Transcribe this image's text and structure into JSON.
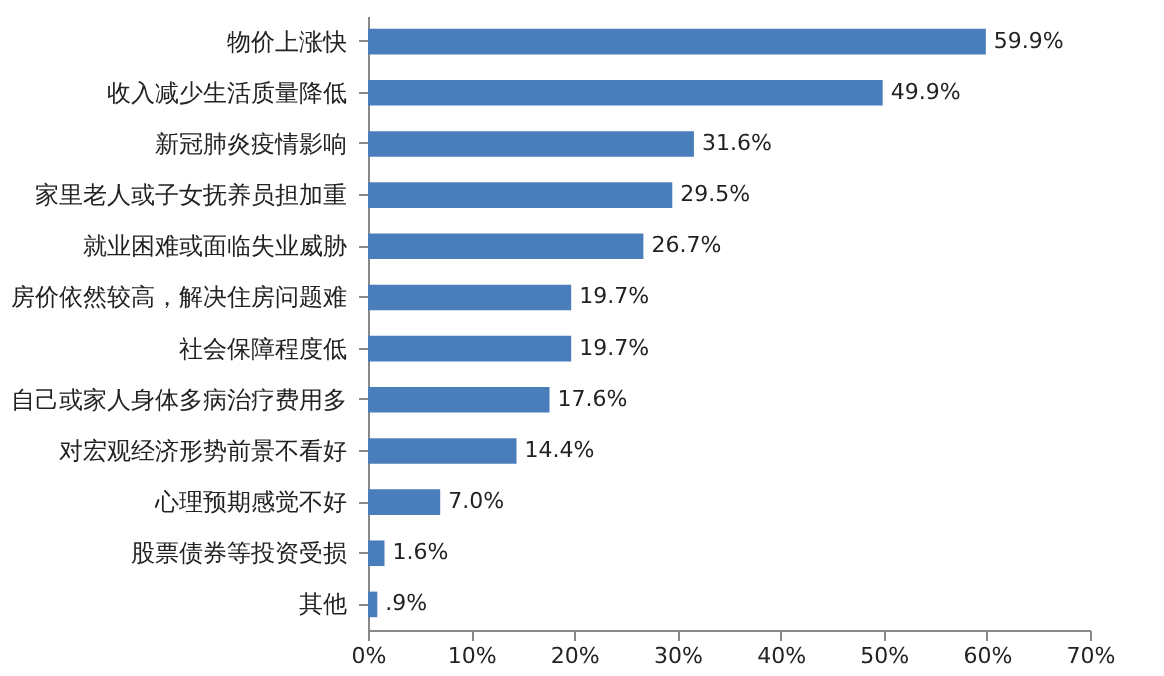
{
  "chart_data": {
    "type": "bar",
    "orientation": "horizontal",
    "categories": [
      "物价上涨快",
      "收入减少生活质量降低",
      "新冠肺炎疫情影响",
      "家里老人或子女抚养员担加重",
      "就业困难或面临失业威胁",
      "房价依然较高，解决住房问题难",
      "社会保障程度低",
      "自己或家人身体多病治疗费用多",
      "对宏观经济形势前景不看好",
      "心理预期感觉不好",
      "股票债券等投资受损",
      "其他"
    ],
    "values": [
      59.9,
      49.9,
      31.6,
      29.5,
      26.7,
      19.7,
      19.7,
      17.6,
      14.4,
      7.0,
      1.6,
      0.9
    ],
    "value_labels": [
      "59.9%",
      "49.9%",
      "31.6%",
      "29.5%",
      "26.7%",
      "19.7%",
      "19.7%",
      "17.6%",
      "14.4%",
      "7.0%",
      "1.6%",
      ".9%"
    ],
    "color": "#4a7ebb",
    "xlim": [
      0,
      70
    ],
    "xticks": [
      {
        "value": 0,
        "label": "0%"
      },
      {
        "value": 10,
        "label": "10%"
      },
      {
        "value": 20,
        "label": "20%"
      },
      {
        "value": 30,
        "label": "30%"
      },
      {
        "value": 40,
        "label": "40%"
      },
      {
        "value": 50,
        "label": "50%"
      },
      {
        "value": 60,
        "label": "60%"
      },
      {
        "value": 70,
        "label": "70%"
      }
    ],
    "grid": false
  }
}
